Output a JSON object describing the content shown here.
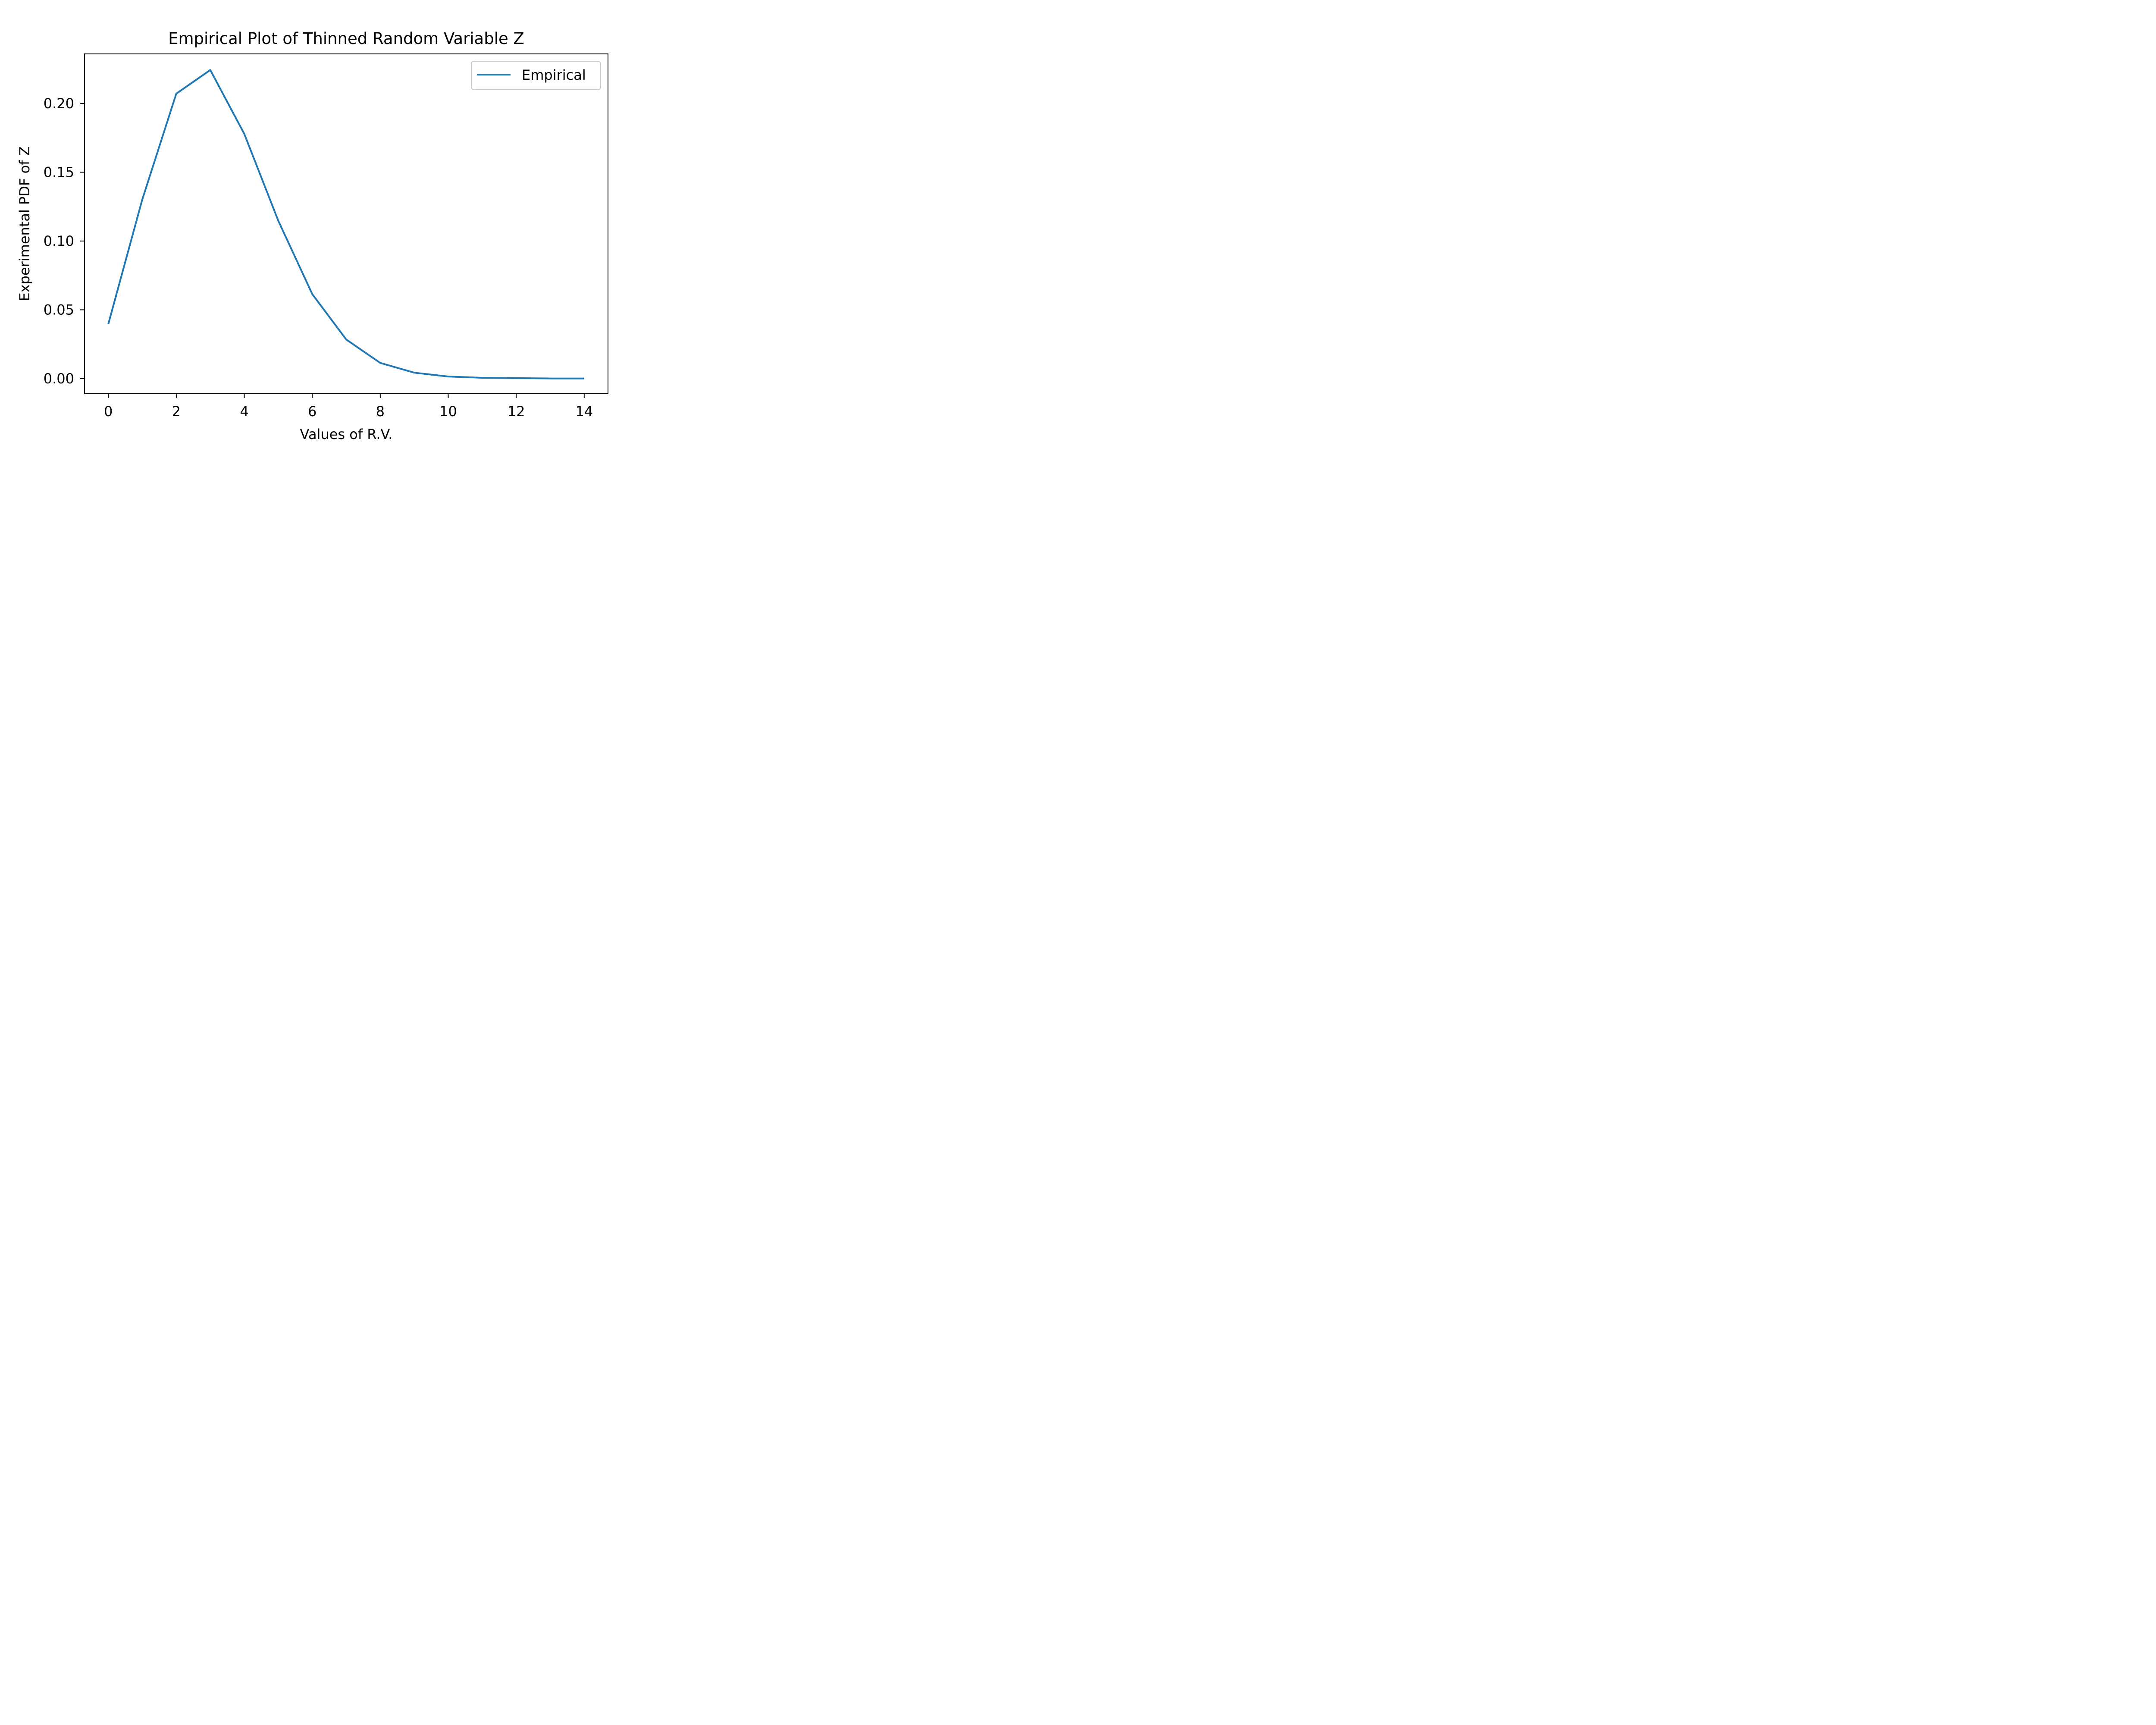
{
  "chart_data": {
    "type": "line",
    "title": "Empirical Plot of Thinned Random Variable Z",
    "xlabel": "Values of R.V.",
    "ylabel": "Experimental PDF of Z",
    "x_ticks": [
      "0",
      "2",
      "4",
      "6",
      "8",
      "10",
      "12",
      "14"
    ],
    "y_ticks": [
      "0.00",
      "0.05",
      "0.10",
      "0.15",
      "0.20"
    ],
    "xlim": [
      -0.7,
      14.7
    ],
    "ylim": [
      -0.011,
      0.236
    ],
    "grid": false,
    "legend": {
      "position": "top-right"
    },
    "series": [
      {
        "name": "Empirical",
        "color": "#1f77b4",
        "x": [
          0,
          1,
          2,
          3,
          4,
          5,
          6,
          7,
          8,
          9,
          10,
          11,
          12,
          13,
          14
        ],
        "y": [
          0.0397,
          0.1302,
          0.2071,
          0.2243,
          0.1779,
          0.1148,
          0.0614,
          0.0284,
          0.0114,
          0.0043,
          0.0015,
          0.0006,
          0.0003,
          0.0001,
          0.0001
        ]
      }
    ]
  }
}
